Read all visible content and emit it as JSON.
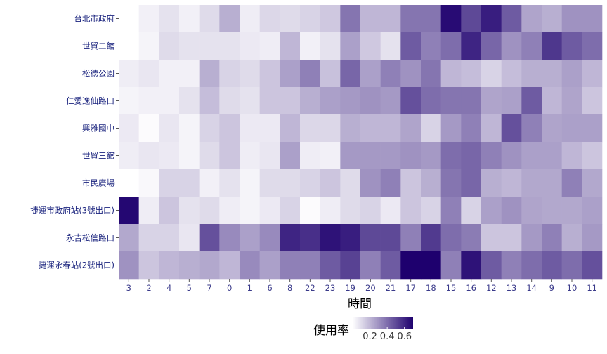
{
  "chart_data": {
    "type": "heatmap",
    "xlabel": "時間",
    "legend_title": "使用率",
    "legend_ticks": [
      "0.2",
      "0.4",
      "0.6"
    ],
    "legend_tick_values": [
      0.2,
      0.4,
      0.6
    ],
    "color_low": "#ffffff",
    "color_high": "#1e006e",
    "color_range": [
      0,
      0.7
    ],
    "legend_placement": "bottom",
    "x_categories": [
      "3",
      "2",
      "4",
      "5",
      "7",
      "0",
      "1",
      "6",
      "8",
      "22",
      "23",
      "19",
      "20",
      "21",
      "17",
      "18",
      "15",
      "16",
      "12",
      "13",
      "14",
      "9",
      "10",
      "11"
    ],
    "y_categories": [
      "台北市政府",
      "世貿二館",
      "松德公園",
      "仁愛逸仙路口",
      "興雅國中",
      "世貿三館",
      "市民廣場",
      "捷運市政府站(3號出口)",
      "永吉松信路口",
      "捷運永春站(2號出口)"
    ],
    "values": [
      [
        0.0,
        0.04,
        0.08,
        0.04,
        0.1,
        0.22,
        0.05,
        0.11,
        0.1,
        0.12,
        0.15,
        0.38,
        0.2,
        0.2,
        0.38,
        0.38,
        0.67,
        0.5,
        0.62,
        0.45,
        0.25,
        0.22,
        0.3,
        0.3
      ],
      [
        0.0,
        0.03,
        0.1,
        0.08,
        0.08,
        0.08,
        0.06,
        0.05,
        0.2,
        0.04,
        0.08,
        0.26,
        0.15,
        0.08,
        0.45,
        0.35,
        0.4,
        0.6,
        0.42,
        0.3,
        0.35,
        0.55,
        0.45,
        0.4
      ],
      [
        0.05,
        0.07,
        0.04,
        0.04,
        0.22,
        0.12,
        0.1,
        0.16,
        0.26,
        0.35,
        0.17,
        0.42,
        0.26,
        0.35,
        0.3,
        0.38,
        0.2,
        0.18,
        0.12,
        0.18,
        0.22,
        0.22,
        0.26,
        0.2
      ],
      [
        0.03,
        0.04,
        0.04,
        0.08,
        0.18,
        0.1,
        0.08,
        0.16,
        0.16,
        0.22,
        0.26,
        0.28,
        0.3,
        0.28,
        0.48,
        0.4,
        0.38,
        0.38,
        0.25,
        0.26,
        0.45,
        0.2,
        0.25,
        0.16
      ],
      [
        0.06,
        0.01,
        0.07,
        0.03,
        0.12,
        0.16,
        0.06,
        0.06,
        0.2,
        0.11,
        0.11,
        0.22,
        0.2,
        0.2,
        0.25,
        0.12,
        0.28,
        0.35,
        0.2,
        0.48,
        0.35,
        0.25,
        0.26,
        0.26
      ],
      [
        0.05,
        0.07,
        0.06,
        0.03,
        0.1,
        0.16,
        0.05,
        0.07,
        0.26,
        0.05,
        0.04,
        0.28,
        0.28,
        0.28,
        0.3,
        0.28,
        0.4,
        0.42,
        0.35,
        0.3,
        0.26,
        0.26,
        0.2,
        0.16
      ],
      [
        0.0,
        0.02,
        0.12,
        0.12,
        0.04,
        0.08,
        0.03,
        0.1,
        0.1,
        0.12,
        0.16,
        0.1,
        0.3,
        0.35,
        0.16,
        0.22,
        0.38,
        0.42,
        0.22,
        0.2,
        0.24,
        0.24,
        0.35,
        0.24
      ],
      [
        0.68,
        0.05,
        0.16,
        0.08,
        0.1,
        0.05,
        0.03,
        0.06,
        0.12,
        0.01,
        0.05,
        0.1,
        0.12,
        0.06,
        0.16,
        0.12,
        0.35,
        0.12,
        0.26,
        0.3,
        0.25,
        0.24,
        0.24,
        0.26
      ],
      [
        0.24,
        0.12,
        0.12,
        0.07,
        0.48,
        0.32,
        0.26,
        0.32,
        0.6,
        0.57,
        0.65,
        0.62,
        0.5,
        0.5,
        0.35,
        0.54,
        0.4,
        0.36,
        0.16,
        0.16,
        0.28,
        0.35,
        0.22,
        0.28
      ],
      [
        0.3,
        0.16,
        0.2,
        0.22,
        0.24,
        0.2,
        0.32,
        0.26,
        0.35,
        0.35,
        0.45,
        0.52,
        0.35,
        0.45,
        0.7,
        0.72,
        0.35,
        0.65,
        0.45,
        0.35,
        0.4,
        0.45,
        0.4,
        0.48
      ]
    ]
  }
}
